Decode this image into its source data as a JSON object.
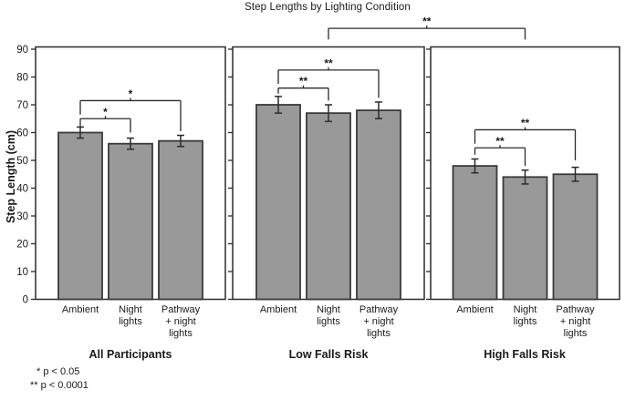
{
  "title": "Step Lengths by Lighting Condition",
  "ylabel": "Step Length (cm)",
  "footnotes": [
    "* p < 0.05",
    "** p < 0.0001"
  ],
  "colors": {
    "background": "#ffffff",
    "bar_fill": "#999999",
    "bar_stroke": "#3a3a3a",
    "axis": "#2b2b2b",
    "text": "#1a1a1a"
  },
  "chart_data": {
    "type": "bar",
    "title": "Step Lengths by Lighting Condition",
    "ylabel": "Step Length (cm)",
    "ylim": [
      0,
      90
    ],
    "ytick_step": 10,
    "grid": false,
    "error_bars": true,
    "categories": [
      "Ambient",
      "Night\nlights",
      "Pathway\n+ night\nlights"
    ],
    "panels": [
      {
        "title": "All Participants",
        "values": [
          60,
          56,
          57
        ],
        "errors": [
          2,
          2,
          2
        ],
        "brackets": [
          {
            "from": 0,
            "to": 1,
            "y": 65,
            "left_end": 62,
            "right_end": 60,
            "label": "*"
          },
          {
            "from": 0,
            "to": 2,
            "y": 71.5,
            "left_end": 66.5,
            "right_end": 60.5,
            "label": "*"
          }
        ]
      },
      {
        "title": "Low Falls Risk",
        "values": [
          70,
          67,
          68
        ],
        "errors": [
          3,
          3,
          3
        ],
        "brackets": [
          {
            "from": 0,
            "to": 1,
            "y": 76,
            "left_end": 74,
            "right_end": 71.5,
            "label": "**"
          },
          {
            "from": 0,
            "to": 2,
            "y": 82.5,
            "left_end": 77.5,
            "right_end": 72.5,
            "label": "**"
          }
        ]
      },
      {
        "title": "High Falls Risk",
        "values": [
          48,
          44,
          45
        ],
        "errors": [
          2.5,
          2.5,
          2.5
        ],
        "brackets": [
          {
            "from": 0,
            "to": 1,
            "y": 54.5,
            "left_end": 52,
            "right_end": 48,
            "label": "**"
          },
          {
            "from": 0,
            "to": 2,
            "y": 61,
            "left_end": 56,
            "right_end": 50,
            "label": "**"
          }
        ]
      }
    ],
    "cross_panel_bracket": {
      "from_panel": 1,
      "to_panel": 2,
      "y": 97.5,
      "end": 93.5,
      "label": "**"
    }
  }
}
